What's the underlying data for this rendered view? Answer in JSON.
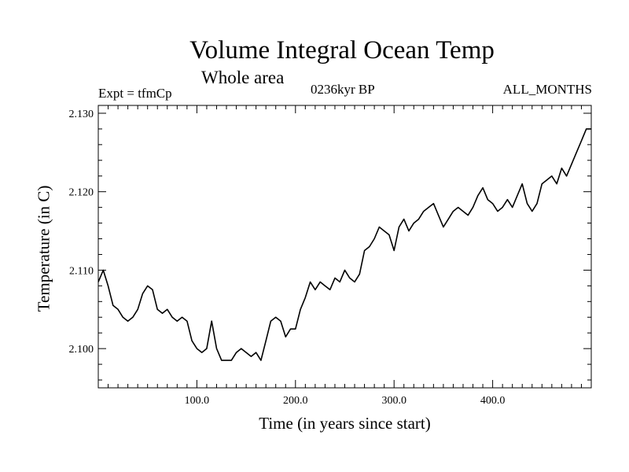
{
  "chart_data": {
    "type": "line",
    "title": "Volume Integral Ocean Temp",
    "subtitle": "Whole area",
    "left_label": "Expt = tfmCp",
    "center_label": "0236kyr BP",
    "right_label": "ALL_MONTHS",
    "xlabel": "Time (in years since start)",
    "ylabel": "Temperature (in C)",
    "xlim": [
      0,
      500
    ],
    "ylim": [
      2.095,
      2.131
    ],
    "x_ticks": [
      100,
      200,
      300,
      400
    ],
    "x_tick_labels": [
      "100.0",
      "200.0",
      "300.0",
      "400.0"
    ],
    "y_ticks": [
      2.1,
      2.11,
      2.12,
      2.13
    ],
    "y_tick_labels": [
      "2.100",
      "2.110",
      "2.120",
      "2.130"
    ],
    "grid": false,
    "series": [
      {
        "color": "#000000",
        "x": [
          0,
          5,
          10,
          15,
          20,
          25,
          30,
          35,
          40,
          45,
          50,
          55,
          60,
          65,
          70,
          75,
          80,
          85,
          90,
          95,
          100,
          105,
          110,
          115,
          120,
          125,
          130,
          135,
          140,
          145,
          150,
          155,
          160,
          165,
          170,
          175,
          180,
          185,
          190,
          195,
          200,
          205,
          210,
          215,
          220,
          225,
          230,
          235,
          240,
          245,
          250,
          255,
          260,
          265,
          270,
          275,
          280,
          285,
          290,
          295,
          300,
          305,
          310,
          315,
          320,
          325,
          330,
          335,
          340,
          345,
          350,
          355,
          360,
          365,
          370,
          375,
          380,
          385,
          390,
          395,
          400,
          405,
          410,
          415,
          420,
          425,
          430,
          435,
          440,
          445,
          450,
          455,
          460,
          465,
          470,
          475,
          480,
          485,
          490,
          495,
          500
        ],
        "y": [
          2.1085,
          2.11,
          2.108,
          2.1055,
          2.105,
          2.104,
          2.1035,
          2.104,
          2.105,
          2.107,
          2.108,
          2.1075,
          2.105,
          2.1045,
          2.105,
          2.104,
          2.1035,
          2.104,
          2.1035,
          2.101,
          2.1,
          2.0995,
          2.1,
          2.1035,
          2.1,
          2.0985,
          2.0985,
          2.0985,
          2.0995,
          2.1,
          2.0995,
          2.099,
          2.0995,
          2.0985,
          2.101,
          2.1035,
          2.104,
          2.1035,
          2.1015,
          2.1025,
          2.1025,
          2.105,
          2.1065,
          2.1085,
          2.1075,
          2.1085,
          2.108,
          2.1075,
          2.109,
          2.1085,
          2.11,
          2.109,
          2.1085,
          2.1095,
          2.1125,
          2.113,
          2.114,
          2.1155,
          2.115,
          2.1145,
          2.1125,
          2.1155,
          2.1165,
          2.115,
          2.116,
          2.1165,
          2.1175,
          2.118,
          2.1185,
          2.117,
          2.1155,
          2.1165,
          2.1175,
          2.118,
          2.1175,
          2.117,
          2.118,
          2.1195,
          2.1205,
          2.119,
          2.1185,
          2.1175,
          2.118,
          2.119,
          2.118,
          2.1195,
          2.121,
          2.1185,
          2.1175,
          2.1185,
          2.121,
          2.1215,
          2.122,
          2.121,
          2.123,
          2.122,
          2.1235,
          2.125,
          2.1265,
          2.128,
          2.128
        ]
      }
    ]
  }
}
